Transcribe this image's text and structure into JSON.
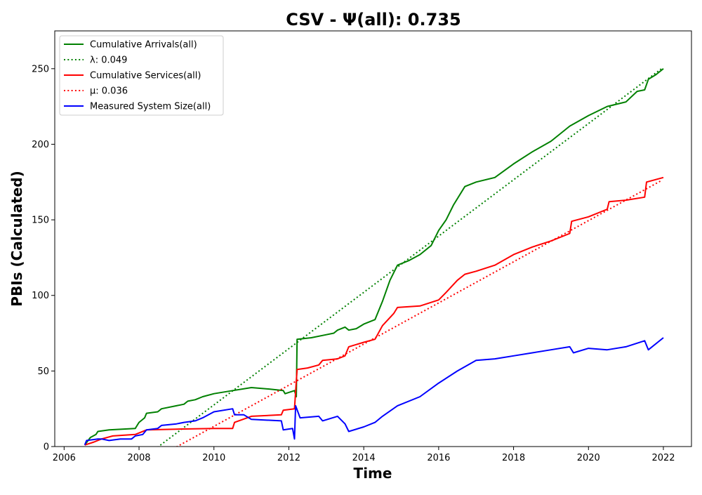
{
  "chart_data": {
    "type": "line",
    "title": "CSV -  Ψ(all): 0.735",
    "xlabel": "Time",
    "ylabel": "PBIs (Calculated)",
    "xlim": [
      2005.75,
      2022.75
    ],
    "ylim": [
      0,
      275
    ],
    "xticks": [
      2006,
      2008,
      2010,
      2012,
      2014,
      2016,
      2018,
      2020,
      2022
    ],
    "xtick_labels": [
      "2006",
      "2008",
      "2010",
      "2012",
      "2014",
      "2016",
      "2018",
      "2020",
      "2022"
    ],
    "yticks": [
      0,
      50,
      100,
      150,
      200,
      250
    ],
    "ytick_labels": [
      "0",
      "50",
      "100",
      "150",
      "200",
      "250"
    ],
    "grid": false,
    "legend_position": "top-left",
    "series": [
      {
        "name": "Cumulative Arrivals(all)",
        "color": "#008000",
        "style": "solid",
        "points": [
          [
            2006.55,
            1
          ],
          [
            2006.7,
            6
          ],
          [
            2006.85,
            8
          ],
          [
            2006.9,
            10
          ],
          [
            2007.2,
            11
          ],
          [
            2007.9,
            12
          ],
          [
            2008.0,
            16
          ],
          [
            2008.15,
            19
          ],
          [
            2008.2,
            22
          ],
          [
            2008.5,
            23
          ],
          [
            2008.6,
            25
          ],
          [
            2009.0,
            27
          ],
          [
            2009.2,
            28
          ],
          [
            2009.3,
            30
          ],
          [
            2009.5,
            31
          ],
          [
            2009.7,
            33
          ],
          [
            2010.0,
            35
          ],
          [
            2010.5,
            37
          ],
          [
            2011.0,
            39
          ],
          [
            2011.5,
            38
          ],
          [
            2011.85,
            37
          ],
          [
            2011.9,
            35
          ],
          [
            2012.15,
            37
          ],
          [
            2012.2,
            33
          ],
          [
            2012.22,
            71
          ],
          [
            2012.6,
            72
          ],
          [
            2013.0,
            74
          ],
          [
            2013.2,
            75
          ],
          [
            2013.3,
            77
          ],
          [
            2013.5,
            79
          ],
          [
            2013.6,
            77
          ],
          [
            2013.8,
            78
          ],
          [
            2014.0,
            81
          ],
          [
            2014.3,
            84
          ],
          [
            2014.5,
            96
          ],
          [
            2014.7,
            110
          ],
          [
            2014.9,
            120
          ],
          [
            2015.2,
            123
          ],
          [
            2015.5,
            127
          ],
          [
            2015.8,
            133
          ],
          [
            2016.0,
            143
          ],
          [
            2016.2,
            150
          ],
          [
            2016.4,
            160
          ],
          [
            2016.7,
            172
          ],
          [
            2017.0,
            175
          ],
          [
            2017.5,
            178
          ],
          [
            2018.0,
            187
          ],
          [
            2018.5,
            195
          ],
          [
            2019.0,
            202
          ],
          [
            2019.5,
            212
          ],
          [
            2020.0,
            219
          ],
          [
            2020.5,
            225
          ],
          [
            2021.0,
            228
          ],
          [
            2021.3,
            235
          ],
          [
            2021.5,
            236
          ],
          [
            2021.6,
            243
          ],
          [
            2021.8,
            246
          ],
          [
            2022.0,
            250
          ]
        ]
      },
      {
        "name": "λ: 0.049",
        "color": "#008000",
        "style": "dotted",
        "points": [
          [
            2008.25,
            -5
          ],
          [
            2021.95,
            250
          ]
        ]
      },
      {
        "name": "Cumulative Services(all)",
        "color": "#ff0000",
        "style": "solid",
        "points": [
          [
            2006.55,
            1
          ],
          [
            2006.8,
            3
          ],
          [
            2007.0,
            5
          ],
          [
            2007.3,
            7
          ],
          [
            2007.9,
            8
          ],
          [
            2008.2,
            11
          ],
          [
            2009.0,
            11.5
          ],
          [
            2010.0,
            12
          ],
          [
            2010.5,
            12
          ],
          [
            2010.55,
            16
          ],
          [
            2011.0,
            20
          ],
          [
            2011.8,
            21
          ],
          [
            2011.85,
            24
          ],
          [
            2012.15,
            25
          ],
          [
            2012.22,
            51
          ],
          [
            2012.5,
            52
          ],
          [
            2012.8,
            54
          ],
          [
            2012.9,
            57
          ],
          [
            2013.3,
            58
          ],
          [
            2013.5,
            60
          ],
          [
            2013.6,
            66
          ],
          [
            2014.0,
            69
          ],
          [
            2014.3,
            71
          ],
          [
            2014.5,
            80
          ],
          [
            2014.8,
            88
          ],
          [
            2014.9,
            92
          ],
          [
            2015.5,
            93
          ],
          [
            2016.0,
            97
          ],
          [
            2016.2,
            102
          ],
          [
            2016.5,
            110
          ],
          [
            2016.7,
            114
          ],
          [
            2017.0,
            116
          ],
          [
            2017.5,
            120
          ],
          [
            2018.0,
            127
          ],
          [
            2018.5,
            132
          ],
          [
            2019.0,
            136
          ],
          [
            2019.5,
            141
          ],
          [
            2019.55,
            149
          ],
          [
            2020.0,
            152
          ],
          [
            2020.5,
            157
          ],
          [
            2020.55,
            162
          ],
          [
            2021.0,
            163
          ],
          [
            2021.5,
            165
          ],
          [
            2021.55,
            175
          ],
          [
            2022.0,
            178
          ]
        ]
      },
      {
        "name": "μ: 0.036",
        "color": "#ff0000",
        "style": "dotted",
        "points": [
          [
            2008.65,
            -5
          ],
          [
            2021.95,
            176
          ]
        ]
      },
      {
        "name": "Measured System Size(all)",
        "color": "#0000ff",
        "style": "solid",
        "points": [
          [
            2006.55,
            1
          ],
          [
            2006.6,
            4
          ],
          [
            2006.9,
            5
          ],
          [
            2007.0,
            5
          ],
          [
            2007.2,
            4
          ],
          [
            2007.5,
            5
          ],
          [
            2007.8,
            5
          ],
          [
            2007.9,
            7
          ],
          [
            2008.1,
            8
          ],
          [
            2008.2,
            11
          ],
          [
            2008.5,
            12
          ],
          [
            2008.6,
            14
          ],
          [
            2009.0,
            15
          ],
          [
            2009.2,
            16
          ],
          [
            2009.5,
            17
          ],
          [
            2009.7,
            19
          ],
          [
            2010.0,
            23
          ],
          [
            2010.5,
            25
          ],
          [
            2010.55,
            21
          ],
          [
            2010.8,
            21
          ],
          [
            2011.0,
            18
          ],
          [
            2011.8,
            17
          ],
          [
            2011.85,
            11
          ],
          [
            2012.1,
            12
          ],
          [
            2012.15,
            5
          ],
          [
            2012.18,
            27
          ],
          [
            2012.3,
            19
          ],
          [
            2012.8,
            20
          ],
          [
            2012.9,
            17
          ],
          [
            2013.3,
            20
          ],
          [
            2013.5,
            15
          ],
          [
            2013.6,
            10
          ],
          [
            2014.0,
            13
          ],
          [
            2014.3,
            16
          ],
          [
            2014.5,
            20
          ],
          [
            2014.9,
            27
          ],
          [
            2015.5,
            33
          ],
          [
            2016.0,
            42
          ],
          [
            2016.5,
            50
          ],
          [
            2017.0,
            57
          ],
          [
            2017.5,
            58
          ],
          [
            2018.0,
            60
          ],
          [
            2018.5,
            62
          ],
          [
            2019.0,
            64
          ],
          [
            2019.5,
            66
          ],
          [
            2019.6,
            62
          ],
          [
            2020.0,
            65
          ],
          [
            2020.5,
            64
          ],
          [
            2021.0,
            66
          ],
          [
            2021.5,
            70
          ],
          [
            2021.6,
            64
          ],
          [
            2022.0,
            72
          ]
        ]
      }
    ]
  }
}
